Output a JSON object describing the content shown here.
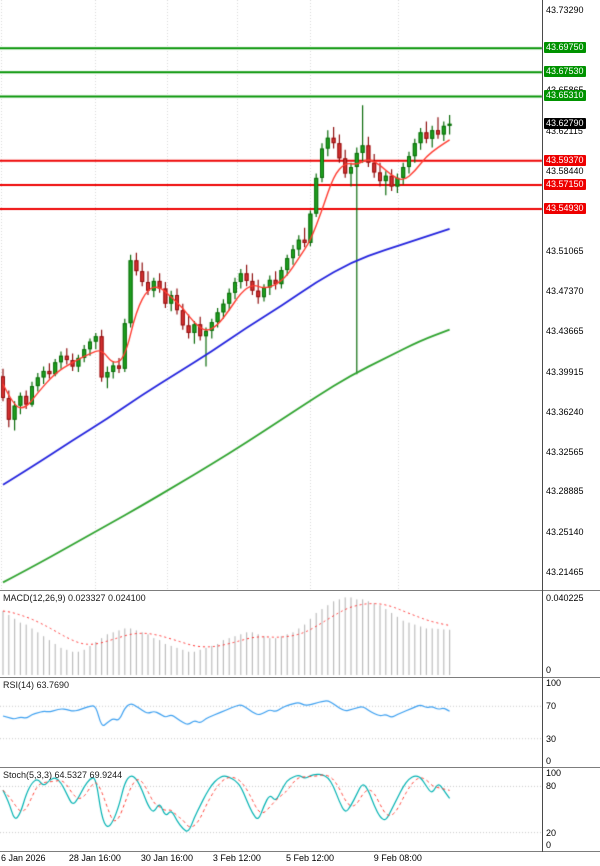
{
  "colors": {
    "up": "#1fa11f",
    "up_border": "#0b6b0b",
    "down": "#d63131",
    "down_border": "#8f1010",
    "ma_fast": "#ff3b30",
    "ma_mid": "#2222dd",
    "ma_slow": "#2fa32f",
    "resistance": "#009300",
    "support": "#ee0000",
    "current": "#000000",
    "grid": "#d8d8d8",
    "level_line": "#c8c8c8",
    "macd_bar": "#bdbdbd",
    "macd_signal": "#ff2d2d",
    "rsi_line": "#3b9ff0",
    "stoch_k": "#00b2b2",
    "stoch_d": "#ff3b30",
    "text": "#000000"
  },
  "chart_data": {
    "type": "candlestick-with-indicators",
    "timeframe_hint": "4H",
    "main": {
      "price_top": 43.742,
      "price_bottom": 43.198,
      "current_price": {
        "v": 43.6279,
        "t": "43.62790"
      },
      "resistance_levels": [
        {
          "v": 43.6975,
          "t": "43.69750"
        },
        {
          "v": 43.6753,
          "t": "43.67530"
        },
        {
          "v": 43.6531,
          "t": "43.65310"
        }
      ],
      "support_levels": [
        {
          "v": 43.5937,
          "t": "43.59370"
        },
        {
          "v": 43.5715,
          "t": "43.57150"
        },
        {
          "v": 43.5493,
          "t": "43.54930"
        }
      ],
      "plain_ticks": [
        {
          "v": 43.7329,
          "t": "43.73290"
        },
        {
          "v": 43.65865,
          "t": "43.65865"
        },
        {
          "v": 43.62115,
          "t": "43.62115"
        },
        {
          "v": 43.5844,
          "t": "43.58440"
        },
        {
          "v": 43.51065,
          "t": "43.51065"
        },
        {
          "v": 43.4737,
          "t": "43.47370"
        },
        {
          "v": 43.43665,
          "t": "43.43665"
        },
        {
          "v": 43.39915,
          "t": "43.39915"
        },
        {
          "v": 43.3624,
          "t": "43.36240"
        },
        {
          "v": 43.32565,
          "t": "43.32565"
        },
        {
          "v": 43.28885,
          "t": "43.28885"
        },
        {
          "v": 43.2514,
          "t": "43.25140"
        },
        {
          "v": 43.21465,
          "t": "43.21465"
        }
      ],
      "candles": [
        [
          43.395,
          43.402,
          43.372,
          43.375
        ],
        [
          43.375,
          43.382,
          43.348,
          43.355
        ],
        [
          43.355,
          43.372,
          43.345,
          43.368
        ],
        [
          43.368,
          43.38,
          43.36,
          43.377
        ],
        [
          43.377,
          43.382,
          43.365,
          43.369
        ],
        [
          43.369,
          43.39,
          43.367,
          43.386
        ],
        [
          43.386,
          43.398,
          43.381,
          43.394
        ],
        [
          43.394,
          43.404,
          43.388,
          43.4
        ],
        [
          43.4,
          43.407,
          43.393,
          43.397
        ],
        [
          43.397,
          43.411,
          43.395,
          43.408
        ],
        [
          43.408,
          43.418,
          43.402,
          43.414
        ],
        [
          43.414,
          43.421,
          43.406,
          43.41
        ],
        [
          43.41,
          43.416,
          43.4,
          43.404
        ],
        [
          43.404,
          43.415,
          43.399,
          43.412
        ],
        [
          43.412,
          43.424,
          43.408,
          43.42
        ],
        [
          43.42,
          43.43,
          43.414,
          43.427
        ],
        [
          43.427,
          43.435,
          43.42,
          43.432
        ],
        [
          43.432,
          43.438,
          43.39,
          43.394
        ],
        [
          43.394,
          43.404,
          43.384,
          43.399
        ],
        [
          43.399,
          43.409,
          43.393,
          43.405
        ],
        [
          43.405,
          43.412,
          43.398,
          43.402
        ],
        [
          43.402,
          43.448,
          43.399,
          43.444
        ],
        [
          43.444,
          43.507,
          43.44,
          43.502
        ],
        [
          43.502,
          43.509,
          43.488,
          43.492
        ],
        [
          43.492,
          43.5,
          43.478,
          43.482
        ],
        [
          43.482,
          43.492,
          43.47,
          43.474
        ],
        [
          43.474,
          43.486,
          43.468,
          43.483
        ],
        [
          43.483,
          43.49,
          43.472,
          43.476
        ],
        [
          43.476,
          43.482,
          43.458,
          43.462
        ],
        [
          43.462,
          43.474,
          43.455,
          43.47
        ],
        [
          43.47,
          43.476,
          43.452,
          43.456
        ],
        [
          43.456,
          43.462,
          43.438,
          43.442
        ],
        [
          43.442,
          43.452,
          43.43,
          43.435
        ],
        [
          43.435,
          43.446,
          43.425,
          43.443
        ],
        [
          43.443,
          43.45,
          43.428,
          43.432
        ],
        [
          43.432,
          43.44,
          43.404,
          43.437
        ],
        [
          43.437,
          43.448,
          43.43,
          43.445
        ],
        [
          43.445,
          43.458,
          43.44,
          43.454
        ],
        [
          43.454,
          43.466,
          43.448,
          43.462
        ],
        [
          43.462,
          43.476,
          43.456,
          43.472
        ],
        [
          43.472,
          43.486,
          43.466,
          43.482
        ],
        [
          43.482,
          43.494,
          43.476,
          43.49
        ],
        [
          43.49,
          43.498,
          43.478,
          43.483
        ],
        [
          43.483,
          43.49,
          43.47,
          43.474
        ],
        [
          43.474,
          43.484,
          43.462,
          43.468
        ],
        [
          43.468,
          43.48,
          43.464,
          43.477
        ],
        [
          43.477,
          43.488,
          43.47,
          43.484
        ],
        [
          43.484,
          43.492,
          43.475,
          43.48
        ],
        [
          43.48,
          43.496,
          43.476,
          43.493
        ],
        [
          43.493,
          43.507,
          43.488,
          43.504
        ],
        [
          43.504,
          43.516,
          43.498,
          43.512
        ],
        [
          43.512,
          43.525,
          43.506,
          43.521
        ],
        [
          43.521,
          43.532,
          43.514,
          43.518
        ],
        [
          43.518,
          43.548,
          43.515,
          43.545
        ],
        [
          43.545,
          43.582,
          43.542,
          43.578
        ],
        [
          43.578,
          43.61,
          43.574,
          43.605
        ],
        [
          43.605,
          43.622,
          43.598,
          43.615
        ],
        [
          43.615,
          43.625,
          43.605,
          43.61
        ],
        [
          43.61,
          43.618,
          43.592,
          43.596
        ],
        [
          43.596,
          43.604,
          43.578,
          43.582
        ],
        [
          43.582,
          43.592,
          43.57,
          43.588
        ],
        [
          43.588,
          43.606,
          43.397,
          43.601
        ],
        [
          43.601,
          43.645,
          43.592,
          43.608
        ],
        [
          43.608,
          43.616,
          43.588,
          43.592
        ],
        [
          43.592,
          43.6,
          43.578,
          43.583
        ],
        [
          43.583,
          43.592,
          43.57,
          43.575
        ],
        [
          43.575,
          43.584,
          43.562,
          43.58
        ],
        [
          43.58,
          43.586,
          43.566,
          43.57
        ],
        [
          43.57,
          43.582,
          43.564,
          43.578
        ],
        [
          43.578,
          43.592,
          43.572,
          43.588
        ],
        [
          43.588,
          43.602,
          43.582,
          43.598
        ],
        [
          43.598,
          43.614,
          43.592,
          43.61
        ],
        [
          43.61,
          43.624,
          43.604,
          43.62
        ],
        [
          43.62,
          43.63,
          43.61,
          43.614
        ],
        [
          43.614,
          43.626,
          43.606,
          43.622
        ],
        [
          43.622,
          43.634,
          43.614,
          43.618
        ],
        [
          43.618,
          43.63,
          43.612,
          43.626
        ],
        [
          43.626,
          43.636,
          43.618,
          43.6279
        ]
      ],
      "ma_fast_red": [
        [
          0,
          43.388
        ],
        [
          2,
          43.366
        ],
        [
          4,
          43.366
        ],
        [
          6,
          43.38
        ],
        [
          9,
          43.398
        ],
        [
          12,
          43.408
        ],
        [
          15,
          43.416
        ],
        [
          17,
          43.42
        ],
        [
          19,
          43.406
        ],
        [
          21,
          43.412
        ],
        [
          23,
          43.456
        ],
        [
          25,
          43.476
        ],
        [
          27,
          43.478
        ],
        [
          29,
          43.468
        ],
        [
          31,
          43.458
        ],
        [
          33,
          43.444
        ],
        [
          35,
          43.436
        ],
        [
          37,
          43.442
        ],
        [
          39,
          43.456
        ],
        [
          41,
          43.472
        ],
        [
          43,
          43.48
        ],
        [
          45,
          43.476
        ],
        [
          47,
          43.479
        ],
        [
          49,
          43.488
        ],
        [
          51,
          43.504
        ],
        [
          53,
          43.52
        ],
        [
          55,
          43.548
        ],
        [
          57,
          43.58
        ],
        [
          59,
          43.592
        ],
        [
          61,
          43.59
        ],
        [
          63,
          43.596
        ],
        [
          65,
          43.59
        ],
        [
          67,
          43.58
        ],
        [
          69,
          43.575
        ],
        [
          71,
          43.584
        ],
        [
          73,
          43.598
        ],
        [
          75,
          43.606
        ],
        [
          77,
          43.613
        ]
      ],
      "ma_mid_blue": [
        [
          0,
          43.295
        ],
        [
          6,
          43.315
        ],
        [
          12,
          43.336
        ],
        [
          18,
          43.356
        ],
        [
          24,
          43.378
        ],
        [
          30,
          43.398
        ],
        [
          36,
          43.418
        ],
        [
          42,
          43.44
        ],
        [
          48,
          43.46
        ],
        [
          54,
          43.482
        ],
        [
          60,
          43.5
        ],
        [
          66,
          43.512
        ],
        [
          72,
          43.522
        ],
        [
          77,
          43.531
        ]
      ],
      "ma_slow_green": [
        [
          0,
          43.205
        ],
        [
          6,
          43.222
        ],
        [
          12,
          43.24
        ],
        [
          18,
          43.258
        ],
        [
          24,
          43.276
        ],
        [
          30,
          43.295
        ],
        [
          36,
          43.314
        ],
        [
          42,
          43.334
        ],
        [
          48,
          43.355
        ],
        [
          54,
          43.376
        ],
        [
          60,
          43.396
        ],
        [
          66,
          43.412
        ],
        [
          72,
          43.428
        ],
        [
          77,
          43.438
        ]
      ]
    },
    "macd": {
      "label": "MACD(12,26,9) 0.023327 0.024100",
      "axis_max": {
        "v": 0.040225,
        "t": "0.040225"
      },
      "axis_min": {
        "v": 0,
        "t": "0"
      },
      "values": [
        0.033,
        0.031,
        0.029,
        0.027,
        0.026,
        0.024,
        0.022,
        0.02,
        0.018,
        0.016,
        0.014,
        0.013,
        0.012,
        0.012,
        0.013,
        0.015,
        0.017,
        0.019,
        0.021,
        0.022,
        0.023,
        0.024,
        0.024,
        0.023,
        0.022,
        0.021,
        0.019,
        0.018,
        0.016,
        0.015,
        0.014,
        0.013,
        0.012,
        0.012,
        0.013,
        0.014,
        0.015,
        0.016,
        0.018,
        0.019,
        0.02,
        0.021,
        0.022,
        0.022,
        0.021,
        0.02,
        0.019,
        0.019,
        0.02,
        0.021,
        0.022,
        0.024,
        0.026,
        0.029,
        0.032,
        0.034,
        0.036,
        0.038,
        0.039,
        0.04,
        0.04,
        0.039,
        0.039,
        0.038,
        0.037,
        0.036,
        0.034,
        0.032,
        0.03,
        0.028,
        0.027,
        0.026,
        0.025,
        0.024,
        0.024,
        0.0238,
        0.0235,
        0.023327
      ]
    },
    "rsi": {
      "label": "RSI(14) 63.7690",
      "axis_labels": [
        {
          "v": 100,
          "t": "100"
        },
        {
          "v": 70,
          "t": "70"
        },
        {
          "v": 30,
          "t": "30"
        },
        {
          "v": 0,
          "t": "0"
        }
      ],
      "levels": [
        70,
        30
      ],
      "values": [
        58,
        56,
        54,
        57,
        55,
        60,
        62,
        64,
        63,
        65,
        67,
        66,
        64,
        65,
        68,
        70,
        71,
        44,
        50,
        55,
        52,
        68,
        74,
        70,
        65,
        61,
        64,
        61,
        56,
        60,
        55,
        50,
        47,
        53,
        49,
        55,
        58,
        61,
        64,
        67,
        70,
        72,
        68,
        63,
        59,
        62,
        66,
        63,
        68,
        71,
        73,
        75,
        71,
        72,
        74,
        76,
        77,
        73,
        68,
        64,
        66,
        68,
        70,
        65,
        61,
        58,
        60,
        56,
        60,
        63,
        66,
        69,
        72,
        68,
        70,
        66,
        68,
        63.769
      ]
    },
    "stoch": {
      "label": "Stoch(5,3,3) 64.5327 69.9244",
      "axis_labels": [
        {
          "v": 100,
          "t": "100"
        },
        {
          "v": 80,
          "t": "80"
        },
        {
          "v": 20,
          "t": "20"
        },
        {
          "v": 0,
          "t": "0"
        }
      ],
      "levels": [
        80,
        20
      ],
      "values": [
        75,
        60,
        35,
        45,
        70,
        85,
        90,
        80,
        88,
        92,
        85,
        70,
        55,
        65,
        80,
        90,
        92,
        40,
        25,
        35,
        55,
        85,
        95,
        90,
        75,
        55,
        45,
        60,
        40,
        50,
        35,
        25,
        20,
        40,
        55,
        70,
        82,
        90,
        94,
        92,
        88,
        80,
        62,
        45,
        35,
        55,
        70,
        60,
        75,
        88,
        92,
        95,
        90,
        94,
        96,
        95,
        92,
        80,
        60,
        45,
        55,
        70,
        85,
        75,
        55,
        40,
        35,
        50,
        65,
        80,
        90,
        94,
        92,
        80,
        70,
        85,
        75,
        64.53
      ]
    },
    "time_axis": [
      {
        "label": "6 Jan 2026",
        "xf": 0.001,
        "align": "left"
      },
      {
        "label": "28 Jan 16:00",
        "xf": 0.175
      },
      {
        "label": "30 Jan 16:00",
        "xf": 0.308
      },
      {
        "label": "3 Feb 12:00",
        "xf": 0.437
      },
      {
        "label": "5 Feb 12:00",
        "xf": 0.572
      },
      {
        "label": "9 Feb 08:00",
        "xf": 0.734
      }
    ]
  }
}
